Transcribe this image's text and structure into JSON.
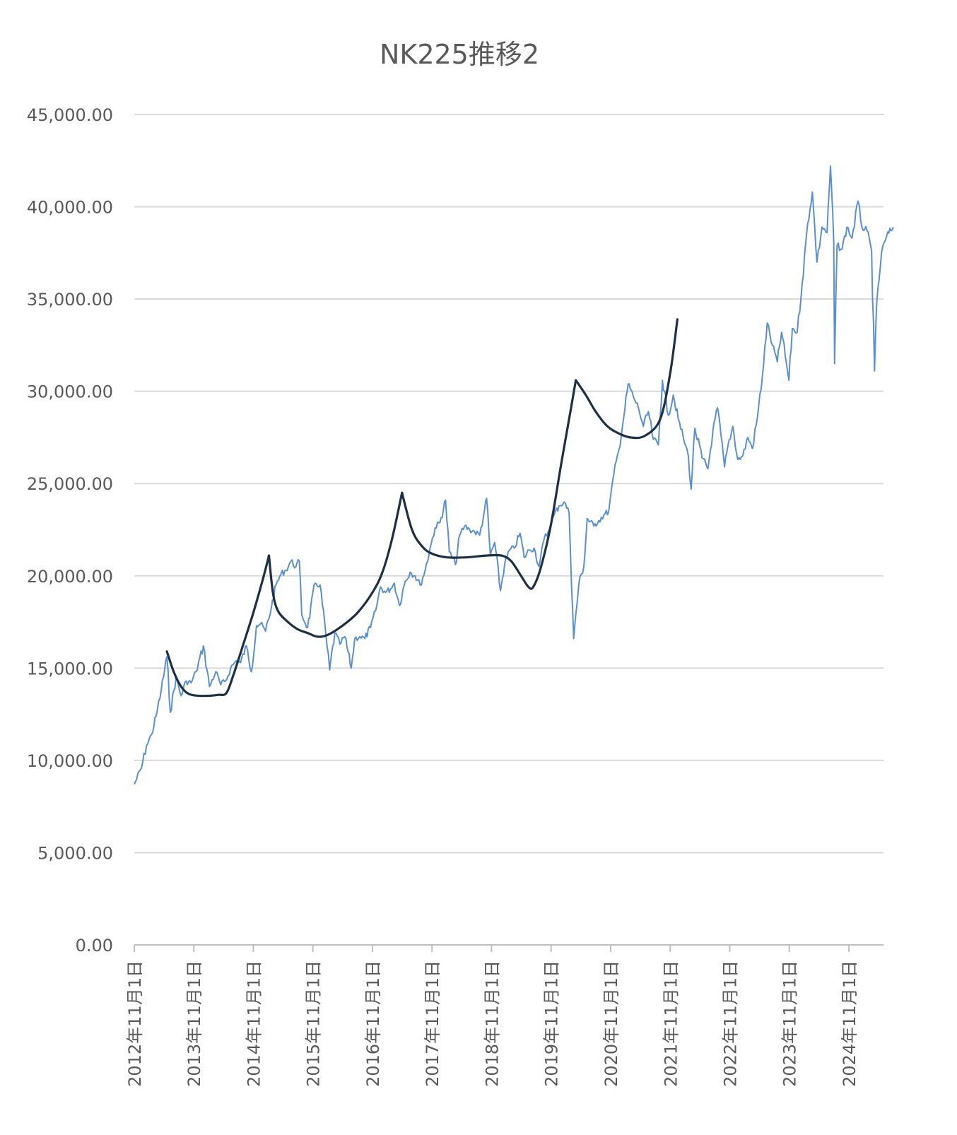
{
  "chart_data": {
    "type": "line",
    "title": "NK225推移2",
    "xlabel": "",
    "ylabel": "",
    "ylim": [
      0,
      45000
    ],
    "xlim": [
      "2012-11-01",
      "2025-08-01"
    ],
    "grid": true,
    "y_ticks": [
      {
        "value": 0,
        "label": "0.00"
      },
      {
        "value": 5000,
        "label": "5,000.00"
      },
      {
        "value": 10000,
        "label": "10,000.00"
      },
      {
        "value": 15000,
        "label": "15,000.00"
      },
      {
        "value": 20000,
        "label": "20,000.00"
      },
      {
        "value": 25000,
        "label": "25,000.00"
      },
      {
        "value": 30000,
        "label": "30,000.00"
      },
      {
        "value": 35000,
        "label": "35,000.00"
      },
      {
        "value": 40000,
        "label": "40,000.00"
      },
      {
        "value": 45000,
        "label": "45,000.00"
      }
    ],
    "x_ticks": [
      {
        "date": "2012-11-01",
        "label": "2012年11月1日"
      },
      {
        "date": "2013-11-01",
        "label": "2013年11月1日"
      },
      {
        "date": "2014-11-01",
        "label": "2014年11月1日"
      },
      {
        "date": "2015-11-01",
        "label": "2015年11月1日"
      },
      {
        "date": "2016-11-01",
        "label": "2016年11月1日"
      },
      {
        "date": "2017-11-01",
        "label": "2017年11月1日"
      },
      {
        "date": "2018-11-01",
        "label": "2018年11月1日"
      },
      {
        "date": "2019-11-01",
        "label": "2019年11月1日"
      },
      {
        "date": "2020-11-01",
        "label": "2020年11月1日"
      },
      {
        "date": "2021-11-01",
        "label": "2021年11月1日"
      },
      {
        "date": "2022-11-01",
        "label": "2022年11月1日"
      },
      {
        "date": "2023-11-01",
        "label": "2023年11月1日"
      },
      {
        "date": "2024-11-01",
        "label": "2024年11月1日"
      }
    ],
    "series": [
      {
        "role": "price",
        "color": "#5b8fcd",
        "points": [
          [
            "2012-11-01",
            8700
          ],
          [
            "2012-12-15",
            9600
          ],
          [
            "2013-01-15",
            10800
          ],
          [
            "2013-02-15",
            11400
          ],
          [
            "2013-03-15",
            12400
          ],
          [
            "2013-04-15",
            13800
          ],
          [
            "2013-05-20",
            15600
          ],
          [
            "2013-06-10",
            12600
          ],
          [
            "2013-07-15",
            14500
          ],
          [
            "2013-08-15",
            13500
          ],
          [
            "2013-09-15",
            14300
          ],
          [
            "2013-10-15",
            14200
          ],
          [
            "2013-11-15",
            14800
          ],
          [
            "2013-12-30",
            16200
          ],
          [
            "2014-02-05",
            14000
          ],
          [
            "2014-03-15",
            14800
          ],
          [
            "2014-04-15",
            14100
          ],
          [
            "2014-05-15",
            14300
          ],
          [
            "2014-06-15",
            15000
          ],
          [
            "2014-07-20",
            15400
          ],
          [
            "2014-08-15",
            15300
          ],
          [
            "2014-09-20",
            16200
          ],
          [
            "2014-10-20",
            14800
          ],
          [
            "2014-11-20",
            17300
          ],
          [
            "2014-12-15",
            17400
          ],
          [
            "2015-01-15",
            17000
          ],
          [
            "2015-02-20",
            18300
          ],
          [
            "2015-03-20",
            19500
          ],
          [
            "2015-04-20",
            20100
          ],
          [
            "2015-05-20",
            20300
          ],
          [
            "2015-06-20",
            20800
          ],
          [
            "2015-07-20",
            20500
          ],
          [
            "2015-08-10",
            20800
          ],
          [
            "2015-08-25",
            17900
          ],
          [
            "2015-09-30",
            17200
          ],
          [
            "2015-11-15",
            19600
          ],
          [
            "2015-12-15",
            19500
          ],
          [
            "2016-01-20",
            16800
          ],
          [
            "2016-02-12",
            14900
          ],
          [
            "2016-03-15",
            16900
          ],
          [
            "2016-04-15",
            16300
          ],
          [
            "2016-05-15",
            16700
          ],
          [
            "2016-06-24",
            15000
          ],
          [
            "2016-07-15",
            16600
          ],
          [
            "2016-08-15",
            16700
          ],
          [
            "2016-09-15",
            16600
          ],
          [
            "2016-10-20",
            17200
          ],
          [
            "2016-11-20",
            18100
          ],
          [
            "2016-12-20",
            19400
          ],
          [
            "2017-01-20",
            19100
          ],
          [
            "2017-02-20",
            19300
          ],
          [
            "2017-03-15",
            19600
          ],
          [
            "2017-04-15",
            18400
          ],
          [
            "2017-05-20",
            19700
          ],
          [
            "2017-06-20",
            20200
          ],
          [
            "2017-07-20",
            20000
          ],
          [
            "2017-08-20",
            19500
          ],
          [
            "2017-09-20",
            20300
          ],
          [
            "2017-10-20",
            21500
          ],
          [
            "2017-11-20",
            22600
          ],
          [
            "2017-12-20",
            22900
          ],
          [
            "2018-01-23",
            24100
          ],
          [
            "2018-02-15",
            21300
          ],
          [
            "2018-03-25",
            20600
          ],
          [
            "2018-04-20",
            22200
          ],
          [
            "2018-05-20",
            22700
          ],
          [
            "2018-06-20",
            22500
          ],
          [
            "2018-07-20",
            22400
          ],
          [
            "2018-08-20",
            22200
          ],
          [
            "2018-09-20",
            23600
          ],
          [
            "2018-10-02",
            24200
          ],
          [
            "2018-10-25",
            21100
          ],
          [
            "2018-11-20",
            21800
          ],
          [
            "2018-12-26",
            19200
          ],
          [
            "2019-01-20",
            20600
          ],
          [
            "2019-02-20",
            21400
          ],
          [
            "2019-03-20",
            21500
          ],
          [
            "2019-04-25",
            22300
          ],
          [
            "2019-05-20",
            21000
          ],
          [
            "2019-06-20",
            21400
          ],
          [
            "2019-07-20",
            21500
          ],
          [
            "2019-08-20",
            20500
          ],
          [
            "2019-09-20",
            22000
          ],
          [
            "2019-10-20",
            22500
          ],
          [
            "2019-11-20",
            23300
          ],
          [
            "2019-12-20",
            23800
          ],
          [
            "2020-01-20",
            24000
          ],
          [
            "2020-02-20",
            23400
          ],
          [
            "2020-03-19",
            16600
          ],
          [
            "2020-04-20",
            19600
          ],
          [
            "2020-05-20",
            20500
          ],
          [
            "2020-06-10",
            23100
          ],
          [
            "2020-07-20",
            22700
          ],
          [
            "2020-08-20",
            23000
          ],
          [
            "2020-09-20",
            23300
          ],
          [
            "2020-10-20",
            23500
          ],
          [
            "2020-11-20",
            25500
          ],
          [
            "2020-12-20",
            26800
          ],
          [
            "2021-01-20",
            28600
          ],
          [
            "2021-02-16",
            30400
          ],
          [
            "2021-03-20",
            29700
          ],
          [
            "2021-04-20",
            29100
          ],
          [
            "2021-05-20",
            28100
          ],
          [
            "2021-06-20",
            28900
          ],
          [
            "2021-07-20",
            27400
          ],
          [
            "2021-08-20",
            27100
          ],
          [
            "2021-09-14",
            30600
          ],
          [
            "2021-10-20",
            28700
          ],
          [
            "2021-11-20",
            29800
          ],
          [
            "2021-12-20",
            28500
          ],
          [
            "2022-01-20",
            27500
          ],
          [
            "2022-02-20",
            26500
          ],
          [
            "2022-03-09",
            24700
          ],
          [
            "2022-04-01",
            28000
          ],
          [
            "2022-05-15",
            26400
          ],
          [
            "2022-06-20",
            25800
          ],
          [
            "2022-07-20",
            27800
          ],
          [
            "2022-08-18",
            29100
          ],
          [
            "2022-09-30",
            25900
          ],
          [
            "2022-10-20",
            27000
          ],
          [
            "2022-11-20",
            28100
          ],
          [
            "2022-12-20",
            26300
          ],
          [
            "2023-01-20",
            26500
          ],
          [
            "2023-02-20",
            27500
          ],
          [
            "2023-03-20",
            26900
          ],
          [
            "2023-04-20",
            28600
          ],
          [
            "2023-05-20",
            30800
          ],
          [
            "2023-06-19",
            33700
          ],
          [
            "2023-07-20",
            32500
          ],
          [
            "2023-08-20",
            31600
          ],
          [
            "2023-09-15",
            33200
          ],
          [
            "2023-10-30",
            30600
          ],
          [
            "2023-11-20",
            33400
          ],
          [
            "2023-12-20",
            33200
          ],
          [
            "2024-01-20",
            35900
          ],
          [
            "2024-02-22",
            39100
          ],
          [
            "2024-03-22",
            40800
          ],
          [
            "2024-04-19",
            37000
          ],
          [
            "2024-05-20",
            38900
          ],
          [
            "2024-06-20",
            38600
          ],
          [
            "2024-07-11",
            42200
          ],
          [
            "2024-07-31",
            38100
          ],
          [
            "2024-08-05",
            31500
          ],
          [
            "2024-08-20",
            37900
          ],
          [
            "2024-09-20",
            37700
          ],
          [
            "2024-10-20",
            38900
          ],
          [
            "2024-11-20",
            38300
          ],
          [
            "2024-12-27",
            40300
          ],
          [
            "2025-01-20",
            38900
          ],
          [
            "2025-02-20",
            38700
          ],
          [
            "2025-03-20",
            37600
          ],
          [
            "2025-04-07",
            31100
          ],
          [
            "2025-04-20",
            34700
          ],
          [
            "2025-05-20",
            37500
          ],
          [
            "2025-06-20",
            38400
          ],
          [
            "2025-07-31",
            38900
          ]
        ]
      },
      {
        "role": "trend",
        "color": "#1f3044",
        "segments": [
          [
            [
              "2013-05-20",
              15900
            ],
            [
              "2013-07-01",
              14800
            ],
            [
              "2013-08-15",
              14000
            ],
            [
              "2013-10-01",
              13600
            ],
            [
              "2013-12-01",
              13500
            ],
            [
              "2014-02-01",
              13500
            ],
            [
              "2014-04-01",
              13550
            ],
            [
              "2014-05-20",
              13650
            ],
            [
              "2014-07-01",
              14600
            ],
            [
              "2014-09-01",
              16300
            ],
            [
              "2014-11-01",
              18000
            ],
            [
              "2015-01-01",
              19900
            ],
            [
              "2015-02-05",
              21100
            ]
          ],
          [
            [
              "2015-02-05",
              21100
            ],
            [
              "2015-03-01",
              19100
            ],
            [
              "2015-04-01",
              18100
            ],
            [
              "2015-06-01",
              17500
            ],
            [
              "2015-08-01",
              17100
            ],
            [
              "2015-10-01",
              16900
            ],
            [
              "2015-12-01",
              16700
            ],
            [
              "2016-02-01",
              16800
            ],
            [
              "2016-05-01",
              17300
            ],
            [
              "2016-08-01",
              18000
            ],
            [
              "2016-11-01",
              19100
            ],
            [
              "2017-01-01",
              20200
            ],
            [
              "2017-03-01",
              22000
            ],
            [
              "2017-05-01",
              24500
            ]
          ],
          [
            [
              "2017-05-01",
              24500
            ],
            [
              "2017-07-01",
              22500
            ],
            [
              "2017-09-01",
              21600
            ],
            [
              "2017-11-01",
              21200
            ],
            [
              "2018-02-01",
              21000
            ],
            [
              "2018-06-01",
              21000
            ],
            [
              "2018-10-01",
              21100
            ],
            [
              "2019-01-01",
              21100
            ],
            [
              "2019-03-01",
              20800
            ],
            [
              "2019-05-01",
              20000
            ],
            [
              "2019-06-15",
              19400
            ],
            [
              "2019-07-15",
              19400
            ],
            [
              "2019-09-01",
              20500
            ],
            [
              "2019-11-01",
              22800
            ],
            [
              "2020-01-01",
              26000
            ],
            [
              "2020-03-01",
              29000
            ],
            [
              "2020-04-01",
              30600
            ]
          ],
          [
            [
              "2020-04-01",
              30600
            ],
            [
              "2020-06-01",
              29800
            ],
            [
              "2020-08-01",
              28900
            ],
            [
              "2020-10-01",
              28200
            ],
            [
              "2020-12-01",
              27800
            ],
            [
              "2021-03-01",
              27500
            ],
            [
              "2021-06-01",
              27600
            ],
            [
              "2021-09-01",
              28500
            ],
            [
              "2021-11-01",
              31000
            ],
            [
              "2021-12-15",
              33900
            ]
          ]
        ]
      }
    ]
  }
}
